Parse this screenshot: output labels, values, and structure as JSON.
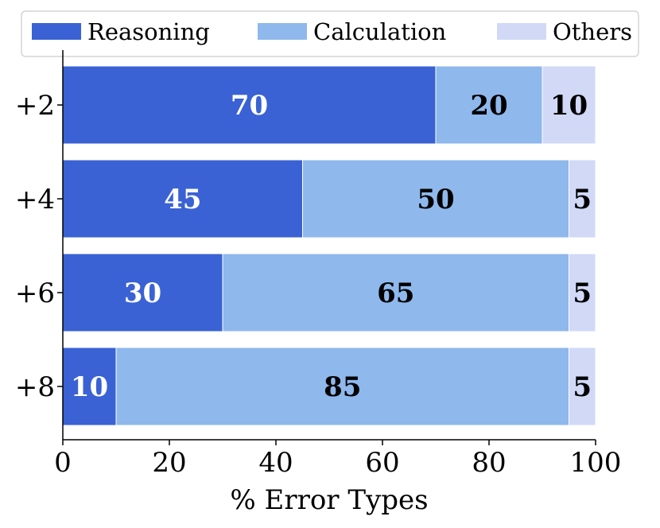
{
  "chart_data": {
    "type": "bar",
    "orientation": "horizontal",
    "stacked": true,
    "categories": [
      "+2",
      "+4",
      "+6",
      "+8"
    ],
    "series": [
      {
        "name": "Reasoning",
        "values": [
          70,
          45,
          30,
          10
        ],
        "color": "#3a62d4",
        "label_color": "#ffffff"
      },
      {
        "name": "Calculation",
        "values": [
          20,
          50,
          65,
          85
        ],
        "color": "#8fb8ec",
        "label_color": "#000000"
      },
      {
        "name": "Others",
        "values": [
          10,
          5,
          5,
          5
        ],
        "color": "#d1d9f7",
        "label_color": "#000000"
      }
    ],
    "xlabel": "% Error Types",
    "ylabel": "",
    "xlim": [
      0,
      100
    ],
    "xticks": [
      "0",
      "20",
      "40",
      "60",
      "80",
      "100"
    ],
    "legend_position": "top",
    "grid": false
  }
}
